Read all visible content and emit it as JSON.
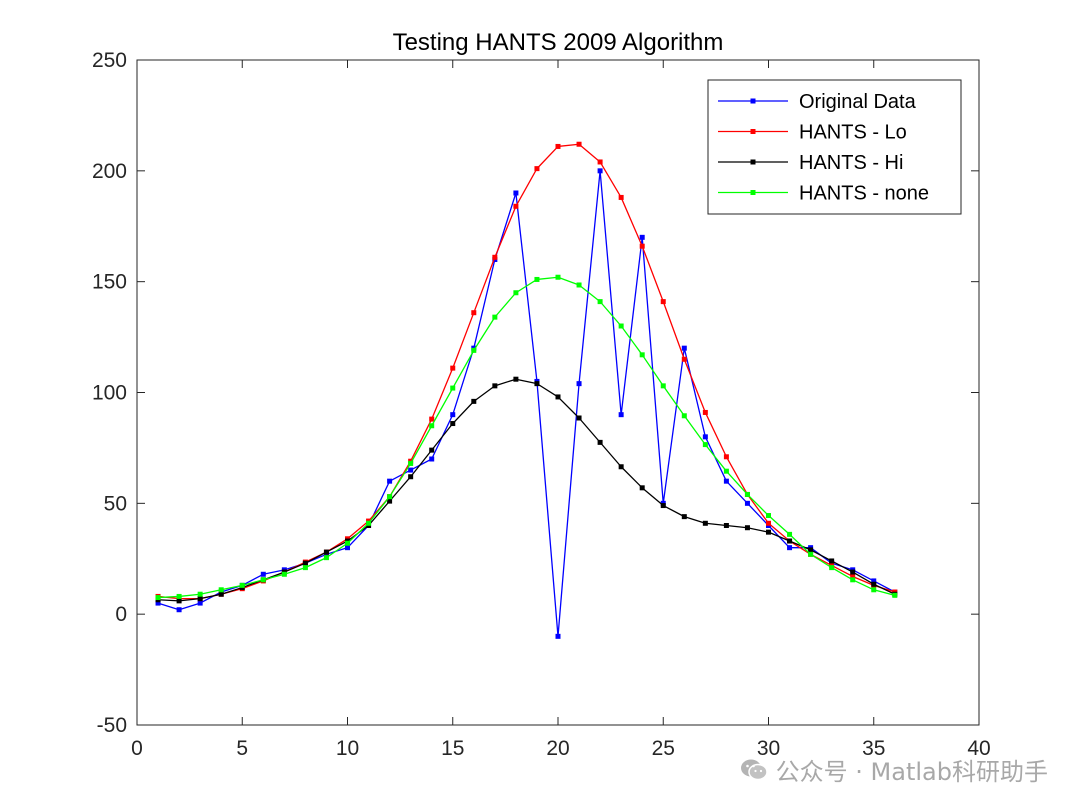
{
  "chart_data": {
    "type": "line",
    "title": "Testing HANTS 2009 Algorithm",
    "xlabel": "",
    "ylabel": "",
    "xlim": [
      0,
      40
    ],
    "ylim": [
      -50,
      250
    ],
    "xticks": [
      0,
      5,
      10,
      15,
      20,
      25,
      30,
      35,
      40
    ],
    "yticks": [
      -50,
      0,
      50,
      100,
      150,
      200,
      250
    ],
    "grid": false,
    "legend_position": "top-right",
    "x": [
      1,
      2,
      3,
      4,
      5,
      6,
      7,
      8,
      9,
      10,
      11,
      12,
      13,
      14,
      15,
      16,
      17,
      18,
      19,
      20,
      21,
      22,
      23,
      24,
      25,
      26,
      27,
      28,
      29,
      30,
      31,
      32,
      33,
      34,
      35,
      36
    ],
    "series": [
      {
        "name": "Original Data",
        "color": "#0000ff",
        "marker": "square",
        "values": [
          5,
          2,
          5,
          10,
          13,
          18,
          20,
          23,
          27,
          30,
          40,
          60,
          65,
          70,
          90,
          120,
          160,
          190,
          105,
          -10,
          104,
          200,
          90,
          170,
          50,
          120,
          80,
          60,
          50,
          40,
          30,
          30,
          23,
          20,
          15,
          10
        ]
      },
      {
        "name": "HANTS - Lo",
        "color": "#ff0000",
        "marker": "square",
        "values": [
          8,
          7,
          7,
          9,
          11.5,
          15,
          19,
          23.5,
          28,
          34,
          42,
          53,
          69,
          88,
          111,
          136,
          161,
          184,
          201,
          211,
          212,
          204,
          188,
          166,
          141,
          115,
          91,
          71,
          54,
          41,
          33,
          27,
          22,
          17,
          13,
          10
        ]
      },
      {
        "name": "HANTS - Hi",
        "color": "#000000",
        "marker": "square",
        "values": [
          6.5,
          6,
          7,
          9,
          12,
          15.5,
          19,
          23,
          28,
          33,
          40,
          51,
          62,
          74,
          86,
          96,
          103,
          106,
          104,
          98,
          88.5,
          77.5,
          66.5,
          57,
          49,
          44,
          41,
          40,
          39,
          37,
          33,
          29,
          24,
          19,
          13.5,
          9
        ]
      },
      {
        "name": "HANTS - none",
        "color": "#00ff00",
        "marker": "square",
        "values": [
          7.5,
          8,
          9,
          11,
          13,
          15.5,
          18,
          21,
          25.5,
          32,
          41,
          53,
          68,
          85,
          102,
          119,
          134,
          145,
          151,
          152,
          148.5,
          141,
          130,
          117,
          103,
          89.5,
          76.5,
          64.5,
          54,
          44.5,
          36,
          27,
          21,
          15.5,
          11,
          8.5
        ]
      }
    ]
  },
  "watermark": {
    "icon": "wechat-icon",
    "text": "公众号 · Matlab科研助手"
  }
}
